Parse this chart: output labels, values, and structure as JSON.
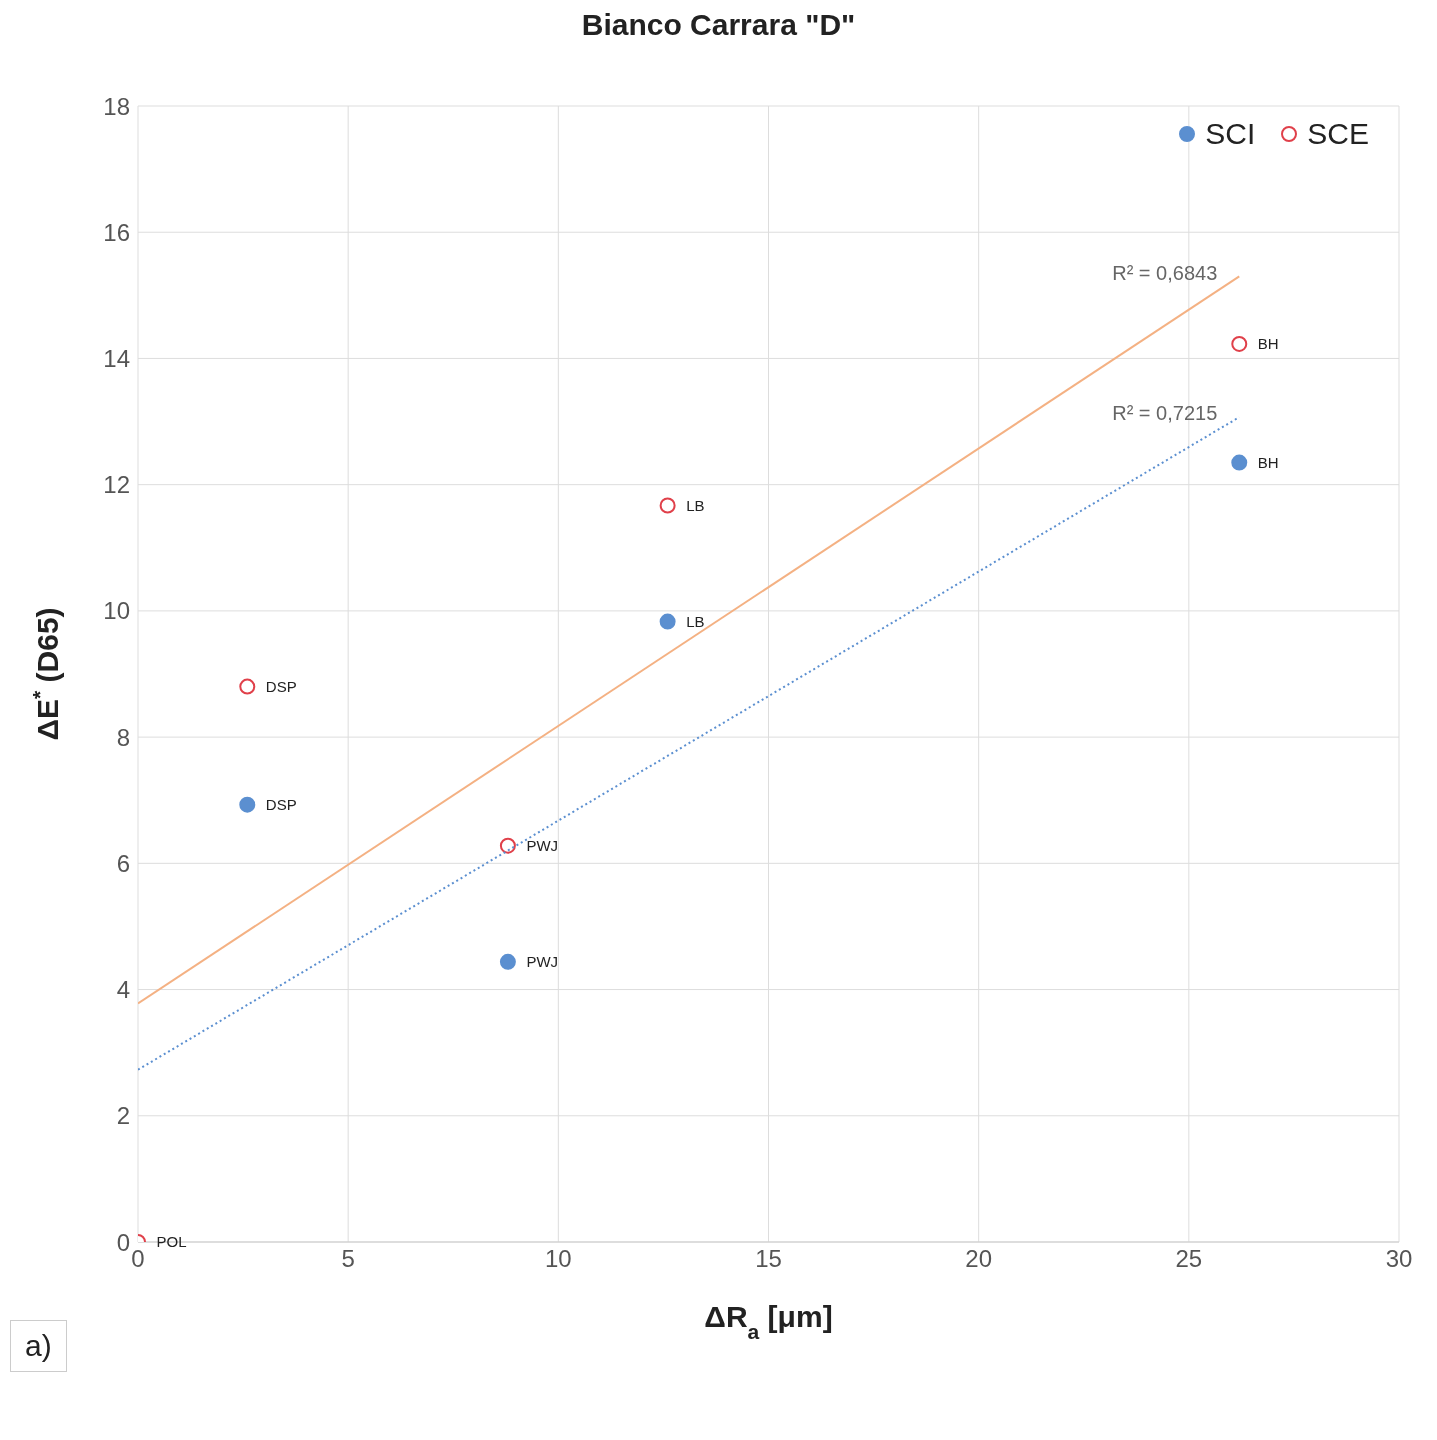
{
  "chart_data": {
    "type": "scatter",
    "title": "Bianco Carrara \"D\"",
    "xlabel": "ΔR$_{a}$ [μm]",
    "ylabel": "ΔE$^{*}$ (D65)",
    "xlim": [
      0,
      30
    ],
    "xticks": [
      0,
      5,
      10,
      15,
      20,
      25,
      30
    ],
    "ylim": [
      0,
      18
    ],
    "yticks": [
      0,
      2,
      4,
      6,
      8,
      10,
      12,
      14,
      16,
      18
    ],
    "grid": true,
    "legend": "top right",
    "series": [
      {
        "name": "SCI",
        "marker": "circle",
        "color": "#5b8fd0",
        "x": [
          2.6,
          8.8,
          12.6,
          26.2
        ],
        "values": [
          6.93,
          4.44,
          9.83,
          12.35
        ],
        "value_labels": [
          "DSP",
          "PWJ",
          "LB",
          "BH"
        ]
      },
      {
        "name": "SCE",
        "marker": "circle",
        "color": "#e0404a",
        "x": [
          0,
          2.6,
          8.8,
          12.6,
          26.2
        ],
        "values": [
          0,
          8.8,
          6.28,
          11.67,
          14.23
        ],
        "value_labels": [
          "POL",
          "DSP",
          "PWJ",
          "LB",
          "BH"
        ]
      },
      {
        "type": "line",
        "marker": "none",
        "color": "#f4b183",
        "line_style": "solid",
        "x": [
          0,
          26.2
        ],
        "values": [
          3.78,
          15.3
        ]
      },
      {
        "type": "line",
        "marker": "none",
        "color": "#5b8fd0",
        "line_style": "dotted",
        "x": [
          0,
          26.2
        ],
        "values": [
          2.73,
          13.07
        ]
      }
    ],
    "annotations": [
      {
        "text": "R² = 0,6843",
        "x": 26.2,
        "y": 15.3
      },
      {
        "text": "R² = 0,7215",
        "x": 26.2,
        "y": 13.07
      },
      "a)"
    ]
  }
}
